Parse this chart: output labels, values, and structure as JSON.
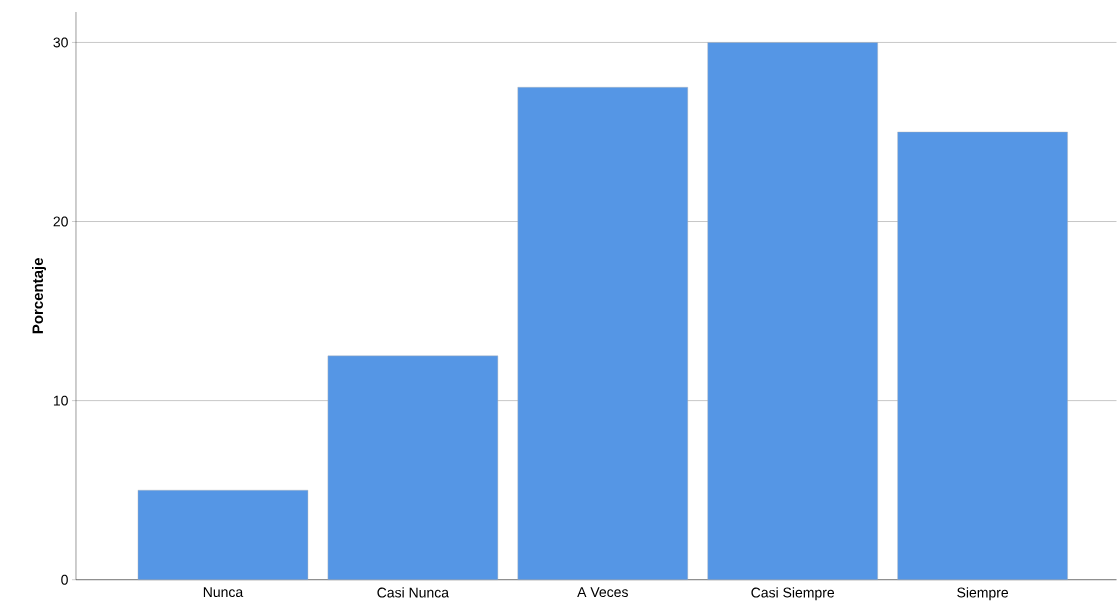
{
  "chart_data": {
    "type": "bar",
    "ylabel": "Porcentaje",
    "categories": [
      "Nunca",
      "Casi Nunca",
      "A Veces",
      "Casi Siempre",
      "Siempre"
    ],
    "values": [
      5,
      12.5,
      27.5,
      30,
      25
    ],
    "color": "#5596e5",
    "ylim": [
      0,
      31.7
    ],
    "yticks": [
      0,
      10,
      20,
      30
    ],
    "grid": "y"
  }
}
